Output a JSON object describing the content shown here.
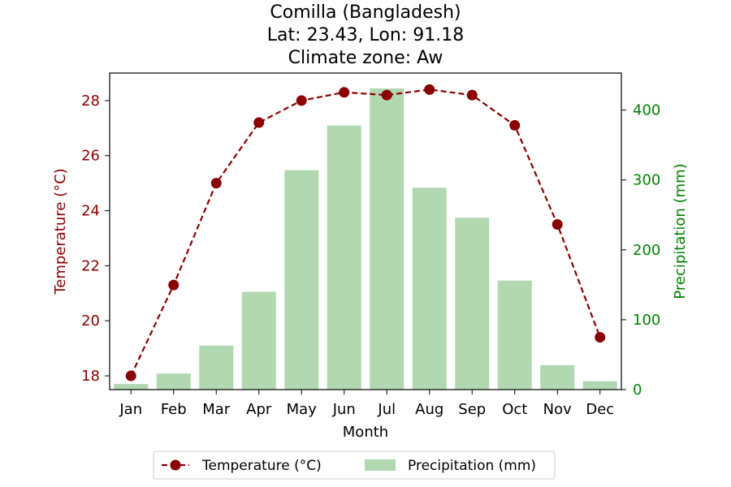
{
  "chart_data": {
    "type": "bar+line",
    "title_lines": [
      "Comilla (Bangladesh)",
      "Lat: 23.43, Lon: 91.18",
      "Climate zone: Aw"
    ],
    "xlabel": "Month",
    "categories": [
      "Jan",
      "Feb",
      "Mar",
      "Apr",
      "May",
      "Jun",
      "Jul",
      "Aug",
      "Sep",
      "Oct",
      "Nov",
      "Dec"
    ],
    "temperature": {
      "name": "Temperature (°C)",
      "axis_label": "Temperature (°C)",
      "values": [
        18.0,
        21.3,
        25.0,
        27.2,
        28.0,
        28.3,
        28.2,
        28.4,
        28.2,
        27.1,
        23.5,
        19.4
      ],
      "ylim": [
        17.5,
        29.0
      ],
      "ticks": [
        18,
        20,
        22,
        24,
        26,
        28
      ],
      "color": "#8b0000"
    },
    "precipitation": {
      "name": "Precipitation (mm)",
      "axis_label": "Precipitation (mm)",
      "values": [
        8,
        23,
        63,
        140,
        314,
        378,
        431,
        289,
        246,
        156,
        35,
        12
      ],
      "ylim": [
        0,
        453
      ],
      "ticks": [
        0,
        100,
        200,
        300,
        400
      ],
      "color": "#b2d8b2",
      "axis_color": "#008000"
    },
    "legend_position": "bottom-center"
  }
}
